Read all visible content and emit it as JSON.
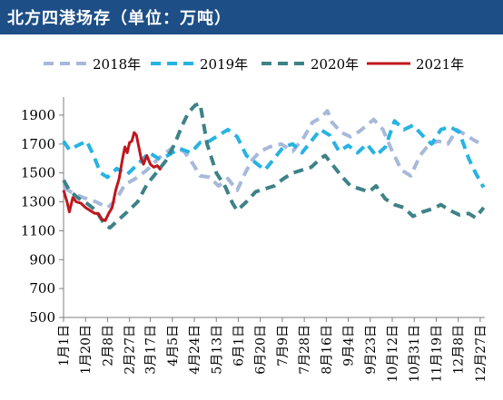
{
  "header": {
    "title": "北方四港场存（单位：万吨）"
  },
  "chart_data": {
    "type": "line",
    "title": "北方四港场存（单位：万吨）",
    "xlabel": "",
    "ylabel": "",
    "ylim": [
      500,
      2000
    ],
    "yticks": [
      500,
      700,
      900,
      1100,
      1300,
      1500,
      1700,
      1900
    ],
    "xlim": [
      0,
      364
    ],
    "xticks": [
      {
        "label": "1月1日",
        "day": 0
      },
      {
        "label": "1月20日",
        "day": 19
      },
      {
        "label": "2月8日",
        "day": 38
      },
      {
        "label": "2月27日",
        "day": 57
      },
      {
        "label": "3月17日",
        "day": 75
      },
      {
        "label": "4月5日",
        "day": 94
      },
      {
        "label": "4月24日",
        "day": 113
      },
      {
        "label": "5月13日",
        "day": 132
      },
      {
        "label": "6月1日",
        "day": 151
      },
      {
        "label": "6月20日",
        "day": 170
      },
      {
        "label": "7月9日",
        "day": 189
      },
      {
        "label": "7月28日",
        "day": 208
      },
      {
        "label": "8月16日",
        "day": 227
      },
      {
        "label": "9月4日",
        "day": 246
      },
      {
        "label": "9月23日",
        "day": 265
      },
      {
        "label": "10月12日",
        "day": 284
      },
      {
        "label": "10月31日",
        "day": 303
      },
      {
        "label": "11月19日",
        "day": 322
      },
      {
        "label": "12月8日",
        "day": 341
      },
      {
        "label": "12月27日",
        "day": 360
      }
    ],
    "legend_position": "top",
    "grid": false,
    "series": [
      {
        "name": "2018年",
        "color": "#a7b9da",
        "style": "dashed",
        "width": 4,
        "x": [
          0,
          8,
          17,
          28,
          38,
          45,
          53,
          62,
          72,
          82,
          95,
          104,
          112,
          118,
          126,
          134,
          142,
          150,
          157,
          163,
          170,
          178,
          188,
          198,
          208,
          215,
          222,
          228,
          232,
          240,
          248,
          256,
          262,
          268,
          276,
          284,
          292,
          300,
          308,
          316,
          324,
          332,
          340,
          348,
          356,
          362
        ],
        "y": [
          1400,
          1360,
          1330,
          1300,
          1260,
          1310,
          1420,
          1460,
          1520,
          1600,
          1680,
          1650,
          1560,
          1480,
          1470,
          1410,
          1460,
          1380,
          1500,
          1590,
          1650,
          1680,
          1700,
          1650,
          1750,
          1850,
          1880,
          1930,
          1850,
          1780,
          1750,
          1790,
          1830,
          1870,
          1800,
          1650,
          1520,
          1480,
          1620,
          1700,
          1720,
          1700,
          1800,
          1760,
          1720,
          1700
        ]
      },
      {
        "name": "2019年",
        "color": "#27b3e2",
        "style": "dashed",
        "width": 4,
        "x": [
          0,
          5,
          12,
          20,
          26,
          32,
          38,
          46,
          55,
          64,
          74,
          82,
          90,
          100,
          110,
          118,
          126,
          134,
          142,
          150,
          158,
          166,
          174,
          182,
          190,
          198,
          206,
          214,
          222,
          230,
          238,
          246,
          254,
          262,
          270,
          278,
          286,
          294,
          302,
          310,
          318,
          326,
          334,
          342,
          350,
          356,
          363
        ],
        "y": [
          1720,
          1660,
          1690,
          1720,
          1620,
          1500,
          1470,
          1530,
          1490,
          1560,
          1640,
          1600,
          1620,
          1670,
          1640,
          1710,
          1720,
          1760,
          1800,
          1750,
          1620,
          1570,
          1520,
          1600,
          1680,
          1700,
          1640,
          1720,
          1800,
          1760,
          1650,
          1690,
          1640,
          1700,
          1620,
          1680,
          1860,
          1800,
          1830,
          1760,
          1700,
          1800,
          1820,
          1780,
          1600,
          1500,
          1400
        ]
      },
      {
        "name": "2020年",
        "color": "#3e8288",
        "style": "dashed",
        "width": 4,
        "x": [
          0,
          5,
          12,
          20,
          28,
          35,
          40,
          48,
          55,
          64,
          72,
          80,
          88,
          96,
          102,
          108,
          114,
          118,
          124,
          132,
          140,
          146,
          150,
          158,
          166,
          174,
          182,
          190,
          198,
          206,
          214,
          222,
          226,
          232,
          240,
          248,
          256,
          264,
          270,
          278,
          286,
          294,
          302,
          310,
          318,
          326,
          334,
          342,
          350,
          356,
          363
        ],
        "y": [
          1450,
          1380,
          1330,
          1290,
          1240,
          1150,
          1120,
          1180,
          1230,
          1300,
          1420,
          1500,
          1580,
          1700,
          1820,
          1920,
          1970,
          1980,
          1700,
          1500,
          1400,
          1290,
          1240,
          1300,
          1370,
          1390,
          1410,
          1460,
          1500,
          1520,
          1540,
          1600,
          1620,
          1560,
          1480,
          1410,
          1390,
          1370,
          1410,
          1320,
          1280,
          1260,
          1200,
          1230,
          1250,
          1280,
          1240,
          1210,
          1220,
          1190,
          1260
        ]
      },
      {
        "name": "2021年",
        "color": "#c0161c",
        "style": "solid",
        "width": 3,
        "x": [
          0,
          3,
          5,
          8,
          11,
          15,
          19,
          23,
          27,
          30,
          33,
          36,
          39,
          42,
          45,
          48,
          51,
          53,
          55,
          57,
          59,
          61,
          63,
          65,
          67,
          69,
          72,
          75,
          78,
          81,
          84
        ],
        "y": [
          1380,
          1300,
          1230,
          1330,
          1300,
          1290,
          1260,
          1240,
          1220,
          1220,
          1180,
          1170,
          1220,
          1260,
          1380,
          1460,
          1600,
          1680,
          1640,
          1710,
          1720,
          1780,
          1760,
          1680,
          1600,
          1560,
          1620,
          1560,
          1540,
          1550,
          1520
        ]
      }
    ]
  }
}
